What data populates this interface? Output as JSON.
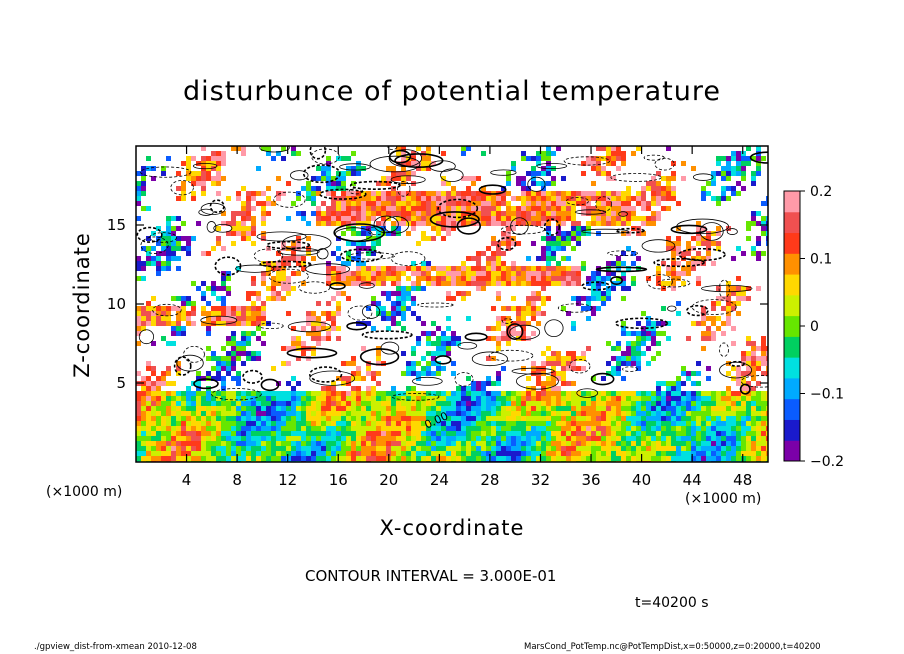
{
  "chart_data": {
    "type": "heatmap",
    "title": "disturbunce of potential temperature",
    "xlabel": "X-coordinate",
    "ylabel": "Z-coordinate",
    "x_unit": "(×1000 m)",
    "x_unit_right": "(×1000 m)",
    "xlim": [
      0,
      50
    ],
    "ylim": [
      0,
      20
    ],
    "x_ticks": [
      4,
      8,
      12,
      16,
      20,
      24,
      28,
      32,
      36,
      40,
      44,
      48
    ],
    "y_ticks": [
      5,
      10,
      15
    ],
    "colorbar": {
      "range": [
        -0.2,
        0.2
      ],
      "ticks": [
        {
          "value": 0.2,
          "label": "0.2"
        },
        {
          "value": 0.1,
          "label": "0.1"
        },
        {
          "value": 0,
          "label": "0"
        },
        {
          "value": -0.1,
          "label": "−0.1"
        },
        {
          "value": -0.2,
          "label": "−0.2"
        }
      ],
      "colors": [
        "#7b00a8",
        "#1a1acc",
        "#0a5cff",
        "#00aaff",
        "#00e0e0",
        "#00d060",
        "#66e600",
        "#ccf000",
        "#ffd800",
        "#ff9000",
        "#ff3a1a",
        "#f05050",
        "#ff9aa8"
      ]
    },
    "contour_interval": "CONTOUR INTERVAL = 3.000E-01",
    "contour_label": "0.00",
    "grid": false
  },
  "annotations": {
    "time": "t=40200 s",
    "footer_left": "./gpview_dist-from-xmean   2010-12-08",
    "footer_right": "MarsCond_PotTemp.nc@PotTempDist,x=0:50000,z=0:20000,t=40200"
  }
}
